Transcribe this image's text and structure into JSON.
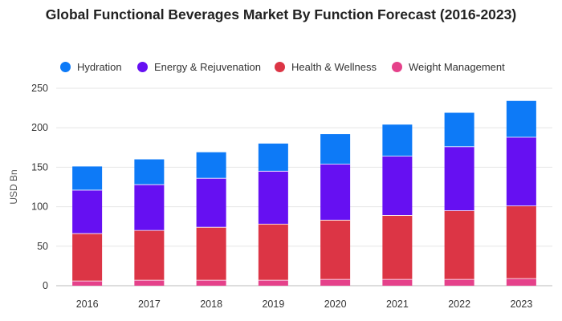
{
  "chart_data": {
    "type": "bar",
    "stacked": true,
    "title": "Global Functional Beverages Market By Function Forecast (2016-2023)",
    "ylabel": "USD Bn",
    "xlabel": "",
    "ylim": [
      0,
      250
    ],
    "yticks": [
      0,
      50,
      100,
      150,
      200,
      250
    ],
    "grid": true,
    "legend_position": "top",
    "categories": [
      "2016",
      "2017",
      "2018",
      "2019",
      "2020",
      "2021",
      "2022",
      "2023"
    ],
    "series": [
      {
        "name": "Weight Management",
        "color": "#E5418A",
        "values": [
          6,
          7,
          7,
          7,
          8,
          8,
          8,
          9
        ]
      },
      {
        "name": "Health & Wellness",
        "color": "#DC3545",
        "values": [
          60,
          63,
          67,
          71,
          75,
          81,
          87,
          92
        ]
      },
      {
        "name": "Energy & Rejuvenation",
        "color": "#6610F2",
        "values": [
          55,
          58,
          62,
          67,
          71,
          75,
          81,
          87
        ]
      },
      {
        "name": "Hydration",
        "color": "#0D7AF7",
        "values": [
          30,
          32,
          33,
          35,
          38,
          40,
          43,
          46
        ]
      }
    ],
    "legend_order": [
      "Hydration",
      "Energy & Rejuvenation",
      "Health & Wellness",
      "Weight Management"
    ]
  }
}
